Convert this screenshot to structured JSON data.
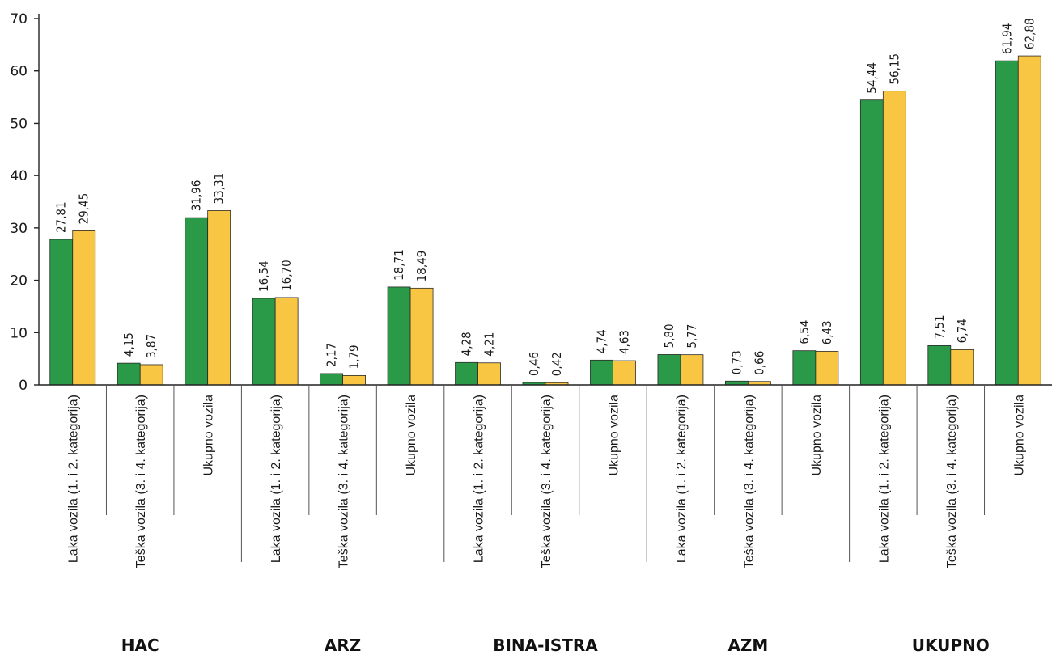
{
  "chart_data": {
    "type": "bar",
    "title": "",
    "xlabel": "",
    "ylabel": "",
    "ylim": [
      0,
      70
    ],
    "yticks": [
      "0",
      "10",
      "20",
      "30",
      "40",
      "50",
      "60",
      "70"
    ],
    "grid": false,
    "legend": "none",
    "colors": {
      "series1": "#2a9a48",
      "series2": "#f9c644"
    },
    "groups": [
      {
        "name": "HAC",
        "categories": [
          {
            "label": "Laka vozila (1. i 2. kategorija)",
            "values": [
              27.81,
              29.45
            ],
            "labels": [
              "27,81",
              "29,45"
            ]
          },
          {
            "label": "Teška vozila (3. i 4. kategorija)",
            "values": [
              4.15,
              3.87
            ],
            "labels": [
              "4,15",
              "3,87"
            ]
          },
          {
            "label": "Ukupno vozila",
            "values": [
              31.96,
              33.31
            ],
            "labels": [
              "31,96",
              "33,31"
            ]
          }
        ]
      },
      {
        "name": "ARZ",
        "categories": [
          {
            "label": "Laka vozila (1. i 2. kategorija)",
            "values": [
              16.54,
              16.7
            ],
            "labels": [
              "16,54",
              "16,70"
            ]
          },
          {
            "label": "Teška vozila (3. i 4. kategorija)",
            "values": [
              2.17,
              1.79
            ],
            "labels": [
              "2,17",
              "1,79"
            ]
          },
          {
            "label": "Ukupno vozila",
            "values": [
              18.71,
              18.49
            ],
            "labels": [
              "18,71",
              "18,49"
            ]
          }
        ]
      },
      {
        "name": "BINA-ISTRA",
        "categories": [
          {
            "label": "Laka vozila (1. i 2. kategorija)",
            "values": [
              4.28,
              4.21
            ],
            "labels": [
              "4,28",
              "4,21"
            ]
          },
          {
            "label": "Teška vozila (3. i 4. kategorija)",
            "values": [
              0.46,
              0.42
            ],
            "labels": [
              "0,46",
              "0,42"
            ]
          },
          {
            "label": "Ukupno vozila",
            "values": [
              4.74,
              4.63
            ],
            "labels": [
              "4,74",
              "4,63"
            ]
          }
        ]
      },
      {
        "name": "AZM",
        "categories": [
          {
            "label": "Laka vozila (1. i 2. kategorija)",
            "values": [
              5.8,
              5.77
            ],
            "labels": [
              "5,80",
              "5,77"
            ]
          },
          {
            "label": "Teška vozila (3. i 4. kategorija)",
            "values": [
              0.73,
              0.66
            ],
            "labels": [
              "0,73",
              "0,66"
            ]
          },
          {
            "label": "Ukupno vozila",
            "values": [
              6.54,
              6.43
            ],
            "labels": [
              "6,54",
              "6,43"
            ]
          }
        ]
      },
      {
        "name": "UKUPNO",
        "categories": [
          {
            "label": "Laka vozila (1. i 2. kategorija)",
            "values": [
              54.44,
              56.15
            ],
            "labels": [
              "54,44",
              "56,15"
            ]
          },
          {
            "label": "Teška vozila (3. i 4. kategorija)",
            "values": [
              7.51,
              6.74
            ],
            "labels": [
              "7,51",
              "6,74"
            ]
          },
          {
            "label": "Ukupno vozila",
            "values": [
              61.94,
              62.88
            ],
            "labels": [
              "61,94",
              "62,88"
            ]
          }
        ]
      }
    ]
  }
}
